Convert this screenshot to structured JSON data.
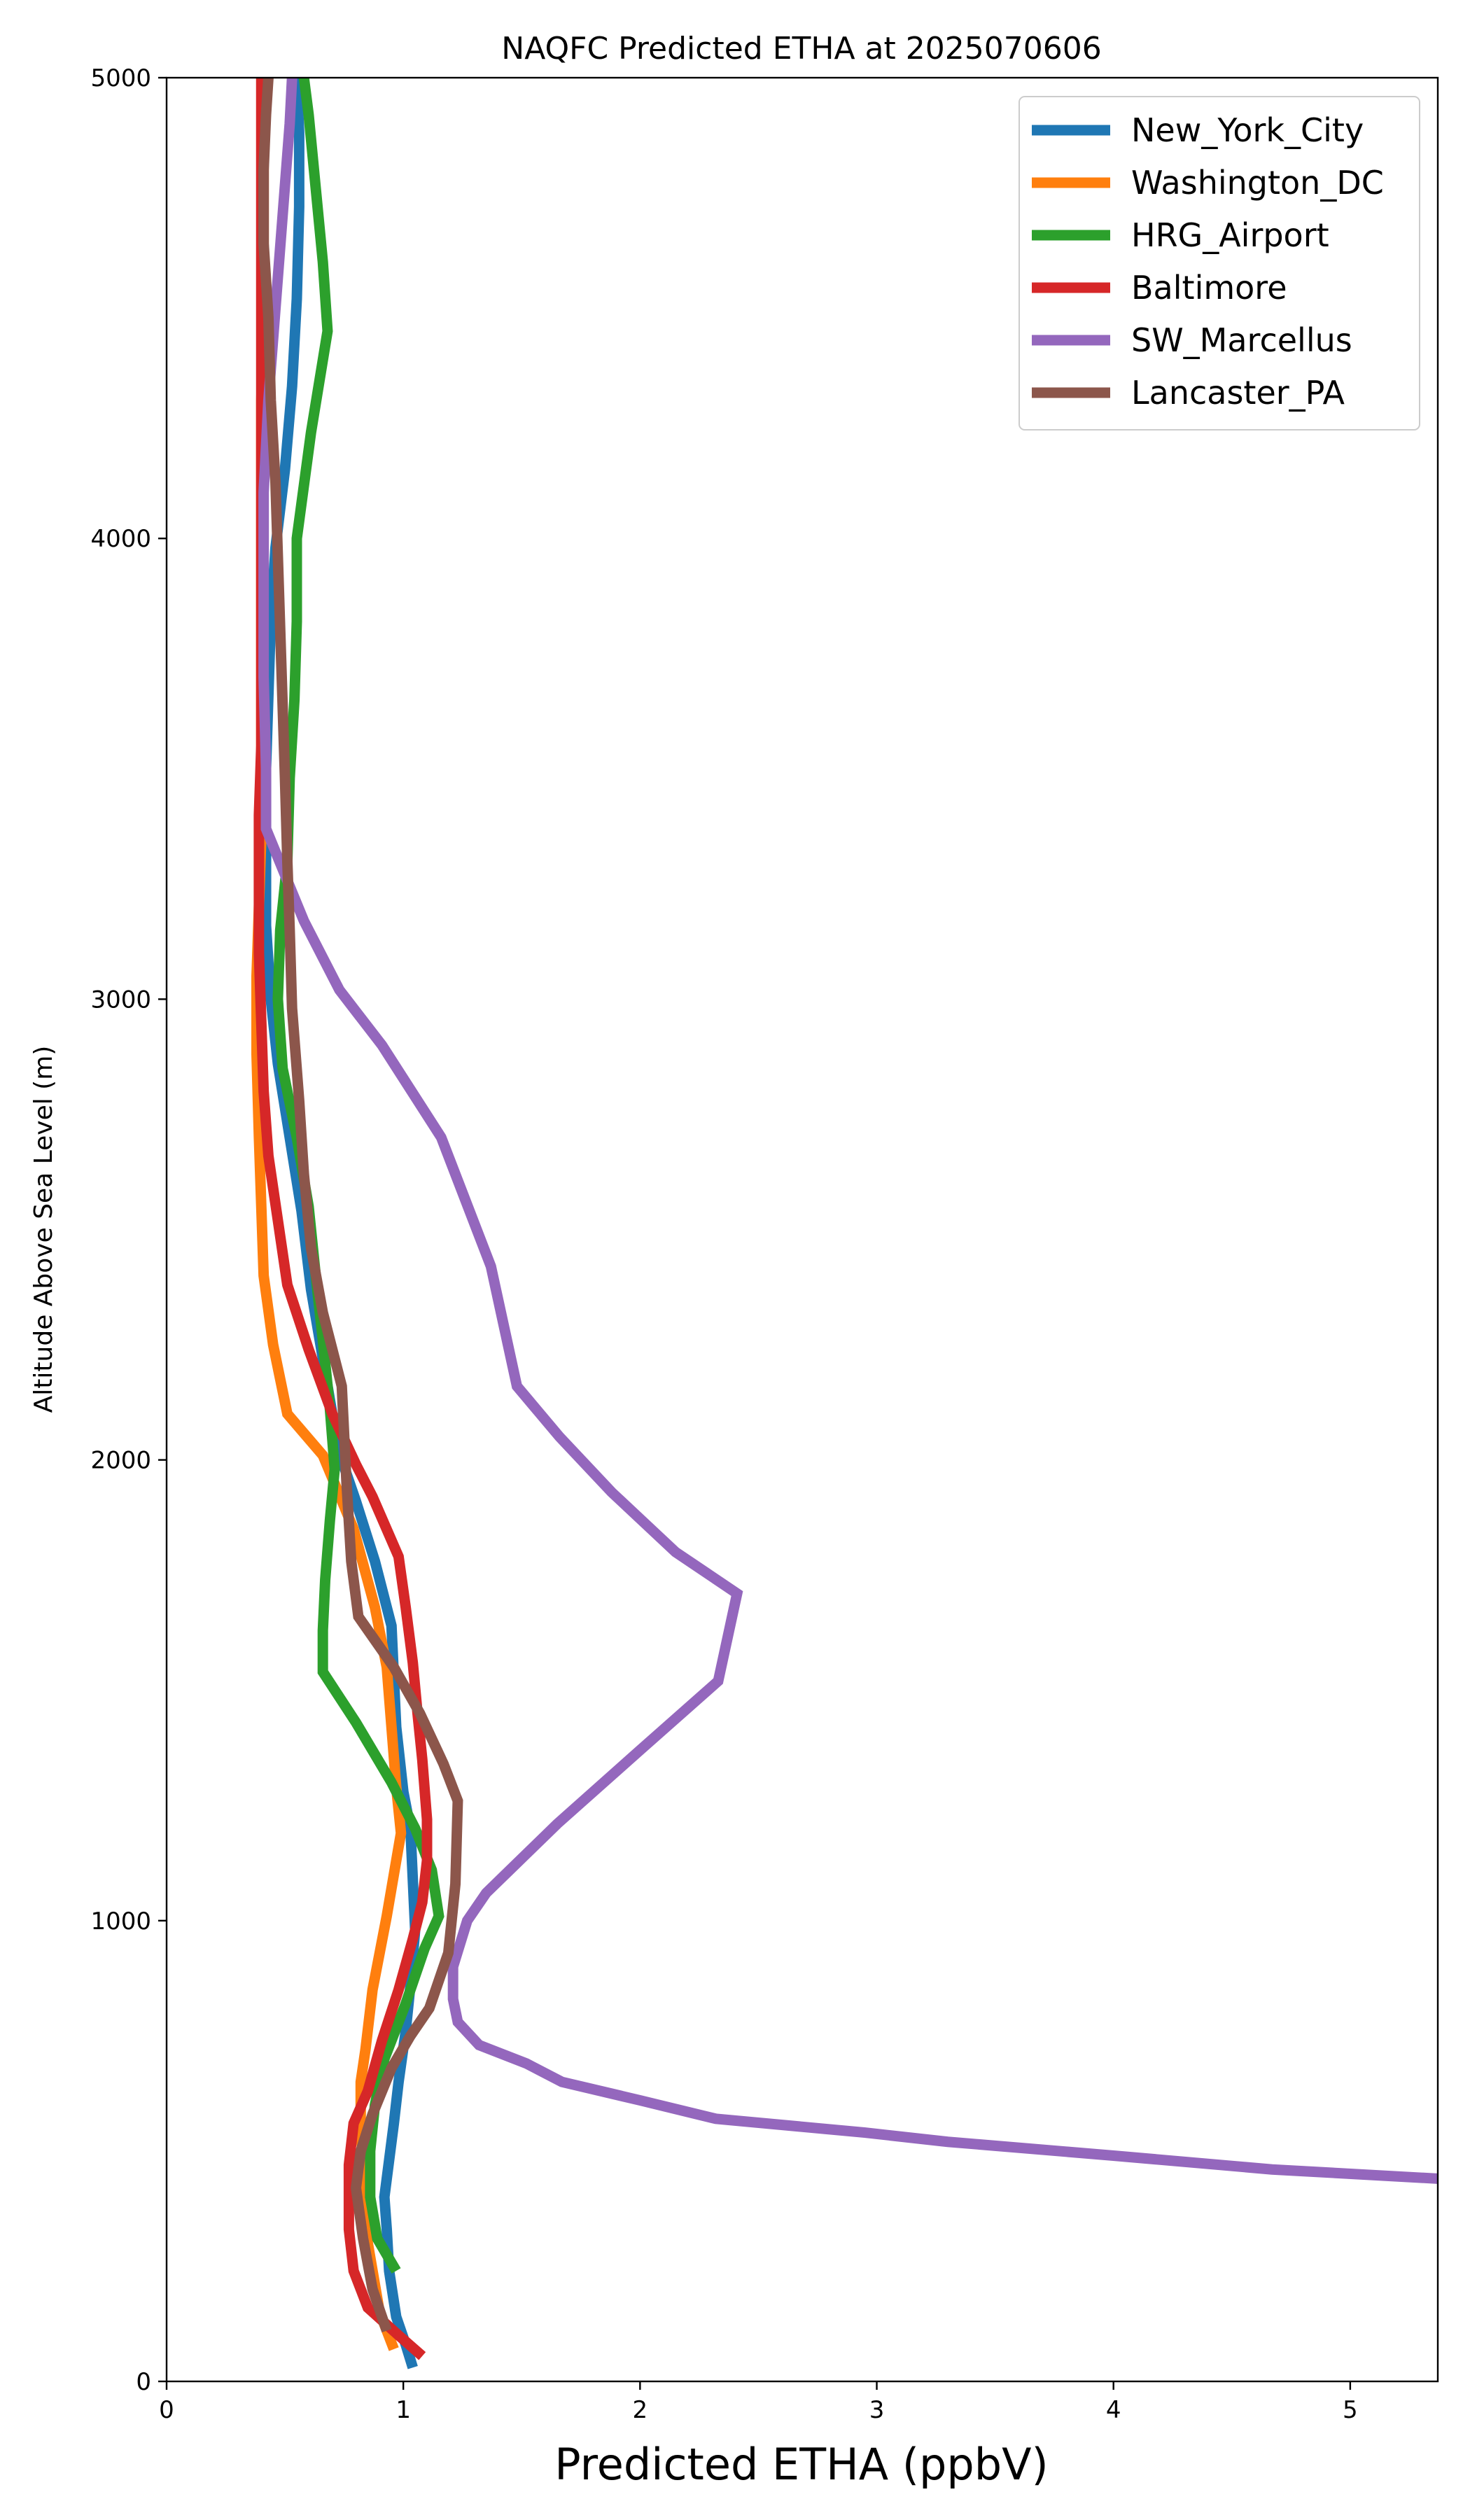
{
  "chart_data": {
    "type": "line",
    "title": "NAQFC Predicted ETHA at 2025070606",
    "xlabel": "Predicted ETHA (ppbV)",
    "ylabel": "Altitude Above Sea Level (m)",
    "xlim": [
      0,
      5.37
    ],
    "ylim": [
      0,
      5000
    ],
    "xticks": [
      0,
      1,
      2,
      3,
      4,
      5
    ],
    "xtick_labels": [
      "0",
      "1",
      "2",
      "3",
      "4",
      "5"
    ],
    "yticks": [
      0,
      1000,
      2000,
      3000,
      4000,
      5000
    ],
    "ytick_labels": [
      "0",
      "1000",
      "2000",
      "3000",
      "4000",
      "5000"
    ],
    "grid": false,
    "legend_position": "top-right",
    "series": [
      {
        "name": "New_York_City",
        "color": "#1f77b4",
        "points": [
          [
            1.04,
            30
          ],
          [
            1.01,
            80
          ],
          [
            0.97,
            140
          ],
          [
            0.94,
            240
          ],
          [
            0.93,
            330
          ],
          [
            0.92,
            400
          ],
          [
            0.94,
            480
          ],
          [
            0.96,
            560
          ],
          [
            0.98,
            650
          ],
          [
            1.01,
            760
          ],
          [
            1.03,
            860
          ],
          [
            1.05,
            980
          ],
          [
            1.04,
            1090
          ],
          [
            1.03,
            1200
          ],
          [
            1.0,
            1280
          ],
          [
            0.97,
            1420
          ],
          [
            0.96,
            1530
          ],
          [
            0.95,
            1640
          ],
          [
            0.88,
            1780
          ],
          [
            0.8,
            1910
          ],
          [
            0.74,
            2000
          ],
          [
            0.7,
            2100
          ],
          [
            0.66,
            2220
          ],
          [
            0.61,
            2370
          ],
          [
            0.57,
            2540
          ],
          [
            0.52,
            2700
          ],
          [
            0.47,
            2860
          ],
          [
            0.44,
            3000
          ],
          [
            0.42,
            3160
          ],
          [
            0.42,
            3330
          ],
          [
            0.42,
            3500
          ],
          [
            0.43,
            3660
          ],
          [
            0.44,
            3820
          ],
          [
            0.46,
            3980
          ],
          [
            0.5,
            4150
          ],
          [
            0.53,
            4330
          ],
          [
            0.55,
            4520
          ],
          [
            0.56,
            4720
          ],
          [
            0.56,
            4880
          ],
          [
            0.55,
            5000
          ]
        ]
      },
      {
        "name": "Washington_DC",
        "color": "#ff7f0e",
        "points": [
          [
            0.96,
            70
          ],
          [
            0.9,
            150
          ],
          [
            0.85,
            300
          ],
          [
            0.83,
            450
          ],
          [
            0.82,
            560
          ],
          [
            0.82,
            650
          ],
          [
            0.84,
            720
          ],
          [
            0.87,
            850
          ],
          [
            0.93,
            1010
          ],
          [
            0.99,
            1190
          ],
          [
            0.97,
            1290
          ],
          [
            0.95,
            1420
          ],
          [
            0.93,
            1550
          ],
          [
            0.88,
            1680
          ],
          [
            0.79,
            1850
          ],
          [
            0.66,
            2010
          ],
          [
            0.51,
            2100
          ],
          [
            0.45,
            2250
          ],
          [
            0.41,
            2400
          ],
          [
            0.4,
            2550
          ],
          [
            0.39,
            2700
          ],
          [
            0.38,
            2880
          ],
          [
            0.38,
            3050
          ],
          [
            0.39,
            3200
          ],
          [
            0.4,
            3350
          ],
          [
            0.4,
            3500
          ],
          [
            0.4,
            3700
          ],
          [
            0.4,
            3900
          ],
          [
            0.4,
            4100
          ],
          [
            0.4,
            4300
          ],
          [
            0.41,
            4500
          ],
          [
            0.41,
            4700
          ],
          [
            0.41,
            4880
          ],
          [
            0.41,
            5000
          ]
        ]
      },
      {
        "name": "HRG_Airport",
        "color": "#2ca02c",
        "points": [
          [
            0.97,
            240
          ],
          [
            0.89,
            310
          ],
          [
            0.86,
            400
          ],
          [
            0.86,
            500
          ],
          [
            0.88,
            600
          ],
          [
            0.92,
            700
          ],
          [
            1.01,
            820
          ],
          [
            1.09,
            940
          ],
          [
            1.15,
            1010
          ],
          [
            1.12,
            1110
          ],
          [
            1.05,
            1200
          ],
          [
            0.95,
            1300
          ],
          [
            0.8,
            1430
          ],
          [
            0.66,
            1540
          ],
          [
            0.66,
            1630
          ],
          [
            0.67,
            1740
          ],
          [
            0.69,
            1870
          ],
          [
            0.71,
            1980
          ],
          [
            0.69,
            2110
          ],
          [
            0.66,
            2260
          ],
          [
            0.63,
            2400
          ],
          [
            0.6,
            2550
          ],
          [
            0.55,
            2700
          ],
          [
            0.49,
            2850
          ],
          [
            0.47,
            3000
          ],
          [
            0.48,
            3150
          ],
          [
            0.51,
            3300
          ],
          [
            0.52,
            3480
          ],
          [
            0.54,
            3650
          ],
          [
            0.55,
            3820
          ],
          [
            0.55,
            4000
          ],
          [
            0.61,
            4230
          ],
          [
            0.68,
            4450
          ],
          [
            0.66,
            4600
          ],
          [
            0.63,
            4760
          ],
          [
            0.6,
            4920
          ],
          [
            0.58,
            5000
          ]
        ]
      },
      {
        "name": "Baltimore",
        "color": "#d62728",
        "points": [
          [
            1.08,
            55
          ],
          [
            0.98,
            100
          ],
          [
            0.85,
            160
          ],
          [
            0.79,
            240
          ],
          [
            0.77,
            330
          ],
          [
            0.77,
            400
          ],
          [
            0.77,
            470
          ],
          [
            0.79,
            560
          ],
          [
            0.85,
            630
          ],
          [
            0.91,
            740
          ],
          [
            0.98,
            850
          ],
          [
            1.04,
            960
          ],
          [
            1.08,
            1040
          ],
          [
            1.1,
            1130
          ],
          [
            1.1,
            1220
          ],
          [
            1.08,
            1350
          ],
          [
            1.06,
            1450
          ],
          [
            1.04,
            1560
          ],
          [
            1.01,
            1680
          ],
          [
            0.98,
            1790
          ],
          [
            0.87,
            1920
          ],
          [
            0.8,
            1990
          ],
          [
            0.7,
            2100
          ],
          [
            0.6,
            2240
          ],
          [
            0.51,
            2380
          ],
          [
            0.47,
            2520
          ],
          [
            0.43,
            2660
          ],
          [
            0.41,
            2800
          ],
          [
            0.4,
            2950
          ],
          [
            0.39,
            3100
          ],
          [
            0.39,
            3250
          ],
          [
            0.39,
            3400
          ],
          [
            0.4,
            3550
          ],
          [
            0.4,
            3700
          ],
          [
            0.4,
            3900
          ],
          [
            0.4,
            4100
          ],
          [
            0.4,
            4300
          ],
          [
            0.4,
            4500
          ],
          [
            0.4,
            4700
          ],
          [
            0.4,
            4880
          ],
          [
            0.4,
            5000
          ]
        ]
      },
      {
        "name": "SW_Marcellus",
        "color": "#9467bd",
        "points": [
          [
            5.37,
            440
          ],
          [
            4.67,
            460
          ],
          [
            4.0,
            490
          ],
          [
            3.3,
            520
          ],
          [
            2.95,
            540
          ],
          [
            2.32,
            570
          ],
          [
            2.0,
            610
          ],
          [
            1.67,
            650
          ],
          [
            1.52,
            690
          ],
          [
            1.32,
            730
          ],
          [
            1.23,
            780
          ],
          [
            1.21,
            830
          ],
          [
            1.21,
            900
          ],
          [
            1.27,
            1000
          ],
          [
            1.35,
            1060
          ],
          [
            1.65,
            1210
          ],
          [
            2.0,
            1370
          ],
          [
            2.33,
            1520
          ],
          [
            2.41,
            1710
          ],
          [
            2.15,
            1800
          ],
          [
            1.88,
            1930
          ],
          [
            1.66,
            2050
          ],
          [
            1.48,
            2160
          ],
          [
            1.37,
            2420
          ],
          [
            1.16,
            2700
          ],
          [
            0.91,
            2900
          ],
          [
            0.73,
            3020
          ],
          [
            0.58,
            3170
          ],
          [
            0.42,
            3370
          ],
          [
            0.42,
            3500
          ],
          [
            0.41,
            3700
          ],
          [
            0.41,
            3900
          ],
          [
            0.41,
            4100
          ],
          [
            0.43,
            4300
          ],
          [
            0.46,
            4500
          ],
          [
            0.49,
            4700
          ],
          [
            0.52,
            4900
          ],
          [
            0.53,
            5000
          ]
        ]
      },
      {
        "name": "Lancaster_PA",
        "color": "#8c564b",
        "points": [
          [
            0.93,
            110
          ],
          [
            0.87,
            200
          ],
          [
            0.83,
            310
          ],
          [
            0.8,
            420
          ],
          [
            0.82,
            500
          ],
          [
            0.87,
            580
          ],
          [
            0.95,
            680
          ],
          [
            1.03,
            750
          ],
          [
            1.11,
            810
          ],
          [
            1.19,
            930
          ],
          [
            1.22,
            1080
          ],
          [
            1.23,
            1260
          ],
          [
            1.17,
            1340
          ],
          [
            1.07,
            1450
          ],
          [
            0.96,
            1550
          ],
          [
            0.81,
            1660
          ],
          [
            0.78,
            1780
          ],
          [
            0.76,
            1950
          ],
          [
            0.74,
            2160
          ],
          [
            0.66,
            2320
          ],
          [
            0.61,
            2460
          ],
          [
            0.58,
            2620
          ],
          [
            0.56,
            2780
          ],
          [
            0.53,
            2980
          ],
          [
            0.52,
            3150
          ],
          [
            0.51,
            3300
          ],
          [
            0.5,
            3480
          ],
          [
            0.49,
            3640
          ],
          [
            0.48,
            3800
          ],
          [
            0.47,
            3960
          ],
          [
            0.46,
            4120
          ],
          [
            0.44,
            4300
          ],
          [
            0.43,
            4480
          ],
          [
            0.41,
            4640
          ],
          [
            0.41,
            4800
          ],
          [
            0.42,
            4920
          ],
          [
            0.43,
            5000
          ]
        ]
      }
    ]
  }
}
